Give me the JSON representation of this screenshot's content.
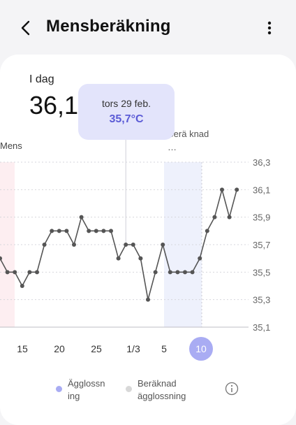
{
  "header": {
    "title": "Mensberäkning",
    "back_icon": "chevron-left-icon",
    "menu_icon": "more-vertical-icon"
  },
  "summary": {
    "label": "I dag",
    "value": "36,1"
  },
  "phases": {
    "mens_label": "Mens",
    "calculated_label": "Berä knad …"
  },
  "tooltip": {
    "date": "tors 29 feb.",
    "value": "35,7°C"
  },
  "chart_data": {
    "type": "line",
    "y_ticks": [
      "36,3",
      "36,1",
      "35,9",
      "35,7",
      "35,5",
      "35,3",
      "35,1"
    ],
    "ylim": [
      35.1,
      36.3
    ],
    "x_tick_labels": [
      "15",
      "20",
      "25",
      "1/3",
      "5",
      "10"
    ],
    "selected_x_label": "10",
    "series": [
      {
        "values": [
          35.6,
          35.5,
          35.5,
          35.4,
          35.5,
          35.5,
          35.7,
          35.8,
          35.8,
          35.8,
          35.7,
          35.9,
          35.8,
          35.8,
          35.8,
          35.8,
          35.6,
          35.7,
          35.7,
          35.6,
          35.3,
          35.5,
          35.7,
          35.5,
          35.5,
          35.5,
          35.5,
          35.6,
          35.8,
          35.9,
          36.1,
          35.9,
          36.1
        ]
      }
    ]
  },
  "legend": {
    "ovulation": "Ägglossn ing",
    "calculated_ovulation": "Beräknad ägglossning",
    "info_icon": "info-icon"
  },
  "colors": {
    "accent": "#5b5bd6",
    "tooltip_bg": "#e3e4fb",
    "mens_band": "#fdeef1",
    "calc_band": "#eef1fc",
    "selected_date": "#a9acf3",
    "line": "#555555"
  }
}
